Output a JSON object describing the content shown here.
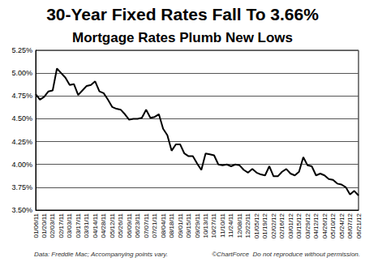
{
  "chart_data": {
    "type": "line",
    "title": "30-Year Fixed Rates Fall To 3.66%",
    "subtitle": "Mortgage Rates Plumb New Lows",
    "annotations": [
      "Data: Freddie Mac; Accompanying points vary.",
      "©ChartForce  Do not reproduce without permission."
    ],
    "categories": [
      "01/06/11",
      null,
      "01/20/11",
      null,
      "02/03/11",
      null,
      "02/17/11",
      null,
      "03/03/11",
      null,
      "03/17/11",
      null,
      "03/31/11",
      null,
      "04/14/11",
      null,
      "04/28/11",
      null,
      "05/12/11",
      null,
      "05/26/11",
      null,
      "06/09/11",
      null,
      "06/23/11",
      null,
      "07/07/11",
      null,
      "07/21/11",
      null,
      "08/04/11",
      null,
      "08/18/11",
      null,
      "09/01/11",
      null,
      "09/15/11",
      null,
      "09/29/11",
      null,
      "10/13/11",
      null,
      "10/27/11",
      null,
      "11/10/11",
      null,
      "11/24/11",
      null,
      "12/08/11",
      null,
      "12/22/11",
      null,
      "01/05/12",
      null,
      "01/19/12",
      null,
      "02/02/12",
      null,
      "02/16/12",
      null,
      "03/01/12",
      null,
      "03/15/12",
      null,
      "03/29/12",
      null,
      "04/12/12",
      null,
      "04/26/12",
      null,
      "05/10/12",
      null,
      "05/24/12",
      null,
      "06/07/12",
      null,
      "06/21/12"
    ],
    "values": [
      4.77,
      4.71,
      4.74,
      4.8,
      4.81,
      5.05,
      5.0,
      4.95,
      4.87,
      4.88,
      4.76,
      4.81,
      4.86,
      4.87,
      4.91,
      4.8,
      4.78,
      4.71,
      4.63,
      4.61,
      4.6,
      4.55,
      4.49,
      4.5,
      4.5,
      4.51,
      4.6,
      4.51,
      4.52,
      4.55,
      4.39,
      4.32,
      4.15,
      4.22,
      4.22,
      4.12,
      4.09,
      4.09,
      4.01,
      3.94,
      4.12,
      4.11,
      4.1,
      4.0,
      3.99,
      4.0,
      3.98,
      4.0,
      3.99,
      3.94,
      3.91,
      3.95,
      3.91,
      3.89,
      3.88,
      3.98,
      3.87,
      3.87,
      3.92,
      3.95,
      3.9,
      3.88,
      3.92,
      4.08,
      3.99,
      3.98,
      3.88,
      3.9,
      3.88,
      3.84,
      3.83,
      3.79,
      3.78,
      3.75,
      3.67,
      3.71,
      3.66
    ],
    "color": "#000000",
    "marker": "none",
    "ylim": [
      3.5,
      5.25
    ],
    "yticks": [
      {
        "value": 3.5,
        "label": "3.50%"
      },
      {
        "value": 3.75,
        "label": "3.75%"
      },
      {
        "value": 4.0,
        "label": "4.00%"
      },
      {
        "value": 4.25,
        "label": "4.25%"
      },
      {
        "value": 4.5,
        "label": "4.50%"
      },
      {
        "value": 4.75,
        "label": "4.75%"
      },
      {
        "value": 5.0,
        "label": "5.00%"
      },
      {
        "value": 5.25,
        "label": "5.25%"
      }
    ],
    "grid": true
  }
}
